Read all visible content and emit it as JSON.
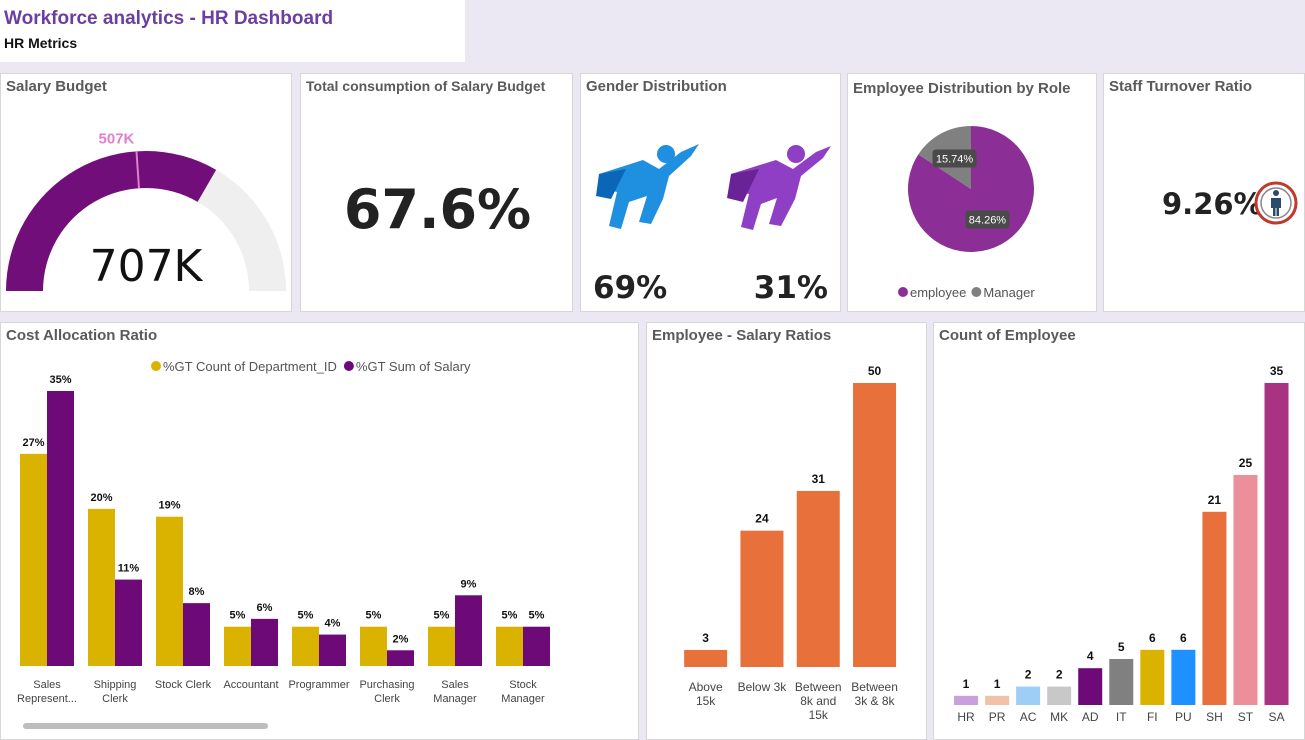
{
  "header": {
    "title": "Workforce analytics - HR Dashboard",
    "subtitle": "HR Metrics"
  },
  "consumption": {
    "title": "Total consumption of Salary Budget",
    "value": "67.6%"
  },
  "gender": {
    "title": "Gender Distribution",
    "male": "69%",
    "female": "31%"
  },
  "turnover": {
    "title": "Staff Turnover Ratio",
    "value": "9.26%"
  },
  "chart_data": [
    {
      "type": "gauge",
      "title": "Salary Budget",
      "value": 707,
      "value_label": "707K",
      "target": 507,
      "target_label": "507K",
      "ylim": [
        0,
        1060
      ],
      "color": "#720e7a",
      "track_color": "#f0efef",
      "target_color": "#e27fcc"
    },
    {
      "type": "pie",
      "title": "Employee Distribution by Role",
      "categories": [
        "employee",
        "Manager"
      ],
      "values": [
        84.26,
        15.74
      ],
      "value_labels": [
        "84.26%",
        "15.74%"
      ],
      "colors": [
        "#8b2f97",
        "#808080"
      ],
      "legend": "bottom"
    },
    {
      "type": "bar",
      "title": "Cost Allocation Ratio",
      "categories": [
        "Sales Represent...",
        "Shipping Clerk",
        "Stock Clerk",
        "Accountant",
        "Programmer",
        "Purchasing Clerk",
        "Sales Manager",
        "Stock Manager"
      ],
      "series": [
        {
          "name": "%GT Count of Department_ID",
          "color": "#d9b300",
          "values": [
            27,
            20,
            19,
            5,
            5,
            5,
            5,
            5
          ],
          "value_labels": [
            "27%",
            "20%",
            "19%",
            "5%",
            "5%",
            "5%",
            "5%",
            "5%"
          ]
        },
        {
          "name": "%GT Sum of Salary",
          "color": "#6e0a78",
          "values": [
            35,
            11,
            8,
            6,
            4,
            2,
            9,
            5
          ],
          "value_labels": [
            "35%",
            "11%",
            "8%",
            "6%",
            "4%",
            "2%",
            "9%",
            "5%"
          ]
        }
      ],
      "ylim": [
        0,
        35
      ],
      "legend": "top"
    },
    {
      "type": "bar",
      "title": "Employee - Salary Ratios",
      "categories": [
        "Above 15k",
        "Below 3k",
        "Between 8k and 15k",
        "Between 3k & 8k"
      ],
      "values": [
        3,
        24,
        31,
        50
      ],
      "color": "#e8703a",
      "ylim": [
        0,
        50
      ]
    },
    {
      "type": "bar",
      "title": "Count of Employee",
      "categories": [
        "HR",
        "PR",
        "AC",
        "MK",
        "AD",
        "IT",
        "FI",
        "PU",
        "SH",
        "ST",
        "SA"
      ],
      "values": [
        1,
        1,
        2,
        2,
        4,
        5,
        6,
        6,
        21,
        25,
        35
      ],
      "colors": [
        "#c9a0dc",
        "#f2c2a8",
        "#9ecdf5",
        "#c8c8c8",
        "#6e0a78",
        "#808080",
        "#d9b300",
        "#1e90ff",
        "#e8703a",
        "#eb8f9a",
        "#a83383"
      ],
      "ylim": [
        0,
        35
      ]
    }
  ]
}
